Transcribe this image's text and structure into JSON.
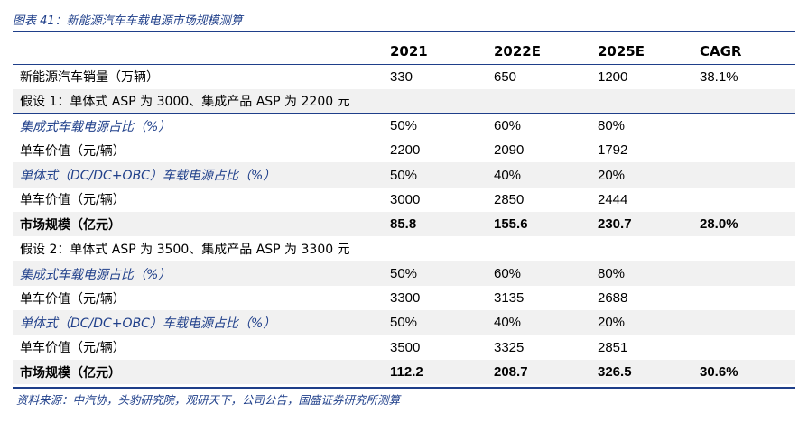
{
  "figure": {
    "title": "图表 41：新能源汽车车载电源市场规模测算",
    "source": "资料来源：中汽协，头豹研究院，观研天下，公司公告，国盛证券研究所测算"
  },
  "table": {
    "headers": [
      "",
      "2021",
      "2022E",
      "2025E",
      "CAGR"
    ],
    "sales_row": {
      "label": "新能源汽车销量（万辆）",
      "values": [
        "330",
        "650",
        "1200",
        "38.1%"
      ]
    },
    "scenario1": {
      "assumption": "假设 1：单体式 ASP 为 3000、集成产品 ASP 为 2200 元",
      "rows": [
        {
          "label": "集成式车载电源占比（%）",
          "values": [
            "50%",
            "60%",
            "80%",
            ""
          ]
        },
        {
          "label": "单车价值（元/辆）",
          "values": [
            "2200",
            "2090",
            "1792",
            ""
          ]
        },
        {
          "label": "单体式（DC/DC+OBC）车载电源占比（%）",
          "values": [
            "50%",
            "40%",
            "20%",
            ""
          ]
        },
        {
          "label": "单车价值（元/辆）",
          "values": [
            "3000",
            "2850",
            "2444",
            ""
          ]
        },
        {
          "label": "市场规模（亿元）",
          "values": [
            "85.8",
            "155.6",
            "230.7",
            "28.0%"
          ]
        }
      ]
    },
    "scenario2": {
      "assumption": "假设 2：单体式 ASP 为 3500、集成产品 ASP 为 3300 元",
      "rows": [
        {
          "label": "集成式车载电源占比（%）",
          "values": [
            "50%",
            "60%",
            "80%",
            ""
          ]
        },
        {
          "label": "单车价值（元/辆）",
          "values": [
            "3300",
            "3135",
            "2688",
            ""
          ]
        },
        {
          "label": "单体式（DC/DC+OBC）车载电源占比（%）",
          "values": [
            "50%",
            "40%",
            "20%",
            ""
          ]
        },
        {
          "label": "单车价值（元/辆）",
          "values": [
            "3500",
            "3325",
            "2851",
            ""
          ]
        },
        {
          "label": "市场规模（亿元）",
          "values": [
            "112.2",
            "208.7",
            "326.5",
            "30.6%"
          ]
        }
      ]
    }
  },
  "colors": {
    "accent": "#1f3f8a",
    "row_shade": "#f1f1f1"
  }
}
